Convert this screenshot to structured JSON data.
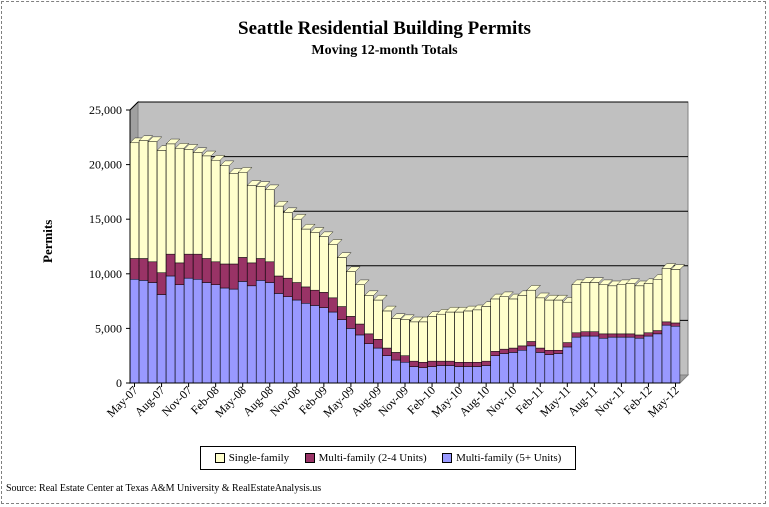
{
  "chart_data": {
    "type": "bar",
    "stacked": true,
    "title": "Seattle Residential Building Permits",
    "subtitle": "Moving 12-month Totals",
    "ylabel": "Permits",
    "xlabel": "",
    "ylim": [
      0,
      25000
    ],
    "yticks": [
      "0",
      "5,000",
      "10,000",
      "15,000",
      "20,000",
      "25,000"
    ],
    "grid": true,
    "legend_position": "bottom",
    "x_tick_labels": [
      "May-07",
      "Aug-07",
      "Nov-07",
      "Feb-08",
      "May-08",
      "Aug-08",
      "Nov-08",
      "Feb-09",
      "May-09",
      "Aug-09",
      "Nov-09",
      "Feb-10",
      "May-10",
      "Aug-10",
      "Nov-10",
      "Feb-11",
      "May-11",
      "Aug-11",
      "Nov-11",
      "Feb-12",
      "May-12"
    ],
    "categories": [
      "May-07",
      "Jun-07",
      "Jul-07",
      "Aug-07",
      "Sep-07",
      "Oct-07",
      "Nov-07",
      "Dec-07",
      "Jan-08",
      "Feb-08",
      "Mar-08",
      "Apr-08",
      "May-08",
      "Jun-08",
      "Jul-08",
      "Aug-08",
      "Sep-08",
      "Oct-08",
      "Nov-08",
      "Dec-08",
      "Jan-09",
      "Feb-09",
      "Mar-09",
      "Apr-09",
      "May-09",
      "Jun-09",
      "Jul-09",
      "Aug-09",
      "Sep-09",
      "Oct-09",
      "Nov-09",
      "Dec-09",
      "Jan-10",
      "Feb-10",
      "Mar-10",
      "Apr-10",
      "May-10",
      "Jun-10",
      "Jul-10",
      "Aug-10",
      "Sep-10",
      "Oct-10",
      "Nov-10",
      "Dec-10",
      "Jan-11",
      "Feb-11",
      "Mar-11",
      "Apr-11",
      "May-11",
      "Jun-11",
      "Jul-11",
      "Aug-11",
      "Sep-11",
      "Oct-11",
      "Nov-11",
      "Dec-11",
      "Jan-12",
      "Feb-12",
      "Mar-12",
      "Apr-12",
      "May-12"
    ],
    "series": [
      {
        "name": "Multi-family (5+ Units)",
        "color": "#9999ff",
        "values": [
          9500,
          9400,
          9200,
          8100,
          9800,
          9000,
          9600,
          9500,
          9200,
          9000,
          8700,
          8600,
          9300,
          8900,
          9400,
          9200,
          8200,
          7900,
          7600,
          7300,
          7100,
          6900,
          6500,
          5800,
          5000,
          4400,
          3600,
          3200,
          2500,
          2100,
          1900,
          1500,
          1400,
          1500,
          1600,
          1600,
          1500,
          1500,
          1500,
          1600,
          2500,
          2700,
          2800,
          3000,
          3400,
          2800,
          2600,
          2700,
          3300,
          4200,
          4300,
          4300,
          4100,
          4200,
          4200,
          4200,
          4100,
          4300,
          4500,
          5300,
          5200
        ]
      },
      {
        "name": "Multi-family (2-4 Units)",
        "color": "#993366",
        "values": [
          1900,
          2000,
          1900,
          2000,
          2000,
          2000,
          2200,
          2300,
          2200,
          2100,
          2200,
          2300,
          2200,
          2100,
          2000,
          1900,
          1600,
          1700,
          1600,
          1500,
          1400,
          1400,
          1300,
          1200,
          1100,
          1000,
          900,
          800,
          700,
          700,
          600,
          500,
          500,
          500,
          400,
          400,
          400,
          400,
          400,
          400,
          400,
          400,
          400,
          400,
          400,
          400,
          400,
          300,
          400,
          400,
          400,
          400,
          400,
          300,
          300,
          300,
          300,
          300,
          300,
          300,
          300
        ]
      },
      {
        "name": "Single-family",
        "color": "#ffffcc",
        "values": [
          10600,
          10800,
          11000,
          11200,
          10100,
          10500,
          9600,
          9300,
          9400,
          9300,
          9000,
          8300,
          7800,
          7100,
          6600,
          6600,
          6400,
          6000,
          5800,
          5300,
          5300,
          5100,
          4900,
          4500,
          4100,
          3600,
          3500,
          3600,
          3400,
          3100,
          3300,
          3600,
          3700,
          4100,
          4300,
          4500,
          4600,
          4700,
          4800,
          5000,
          4800,
          4800,
          4500,
          4600,
          4700,
          4600,
          4600,
          4600,
          3700,
          4400,
          4500,
          4500,
          4500,
          4400,
          4500,
          4600,
          4500,
          4500,
          4700,
          4900,
          4900
        ]
      }
    ]
  },
  "legend_order": [
    "Single-family",
    "Multi-family (2-4 Units)",
    "Multi-family (5+ Units)"
  ],
  "source": "Source: Real Estate Center at Texas A&M University & RealEstateAnalysis.us"
}
